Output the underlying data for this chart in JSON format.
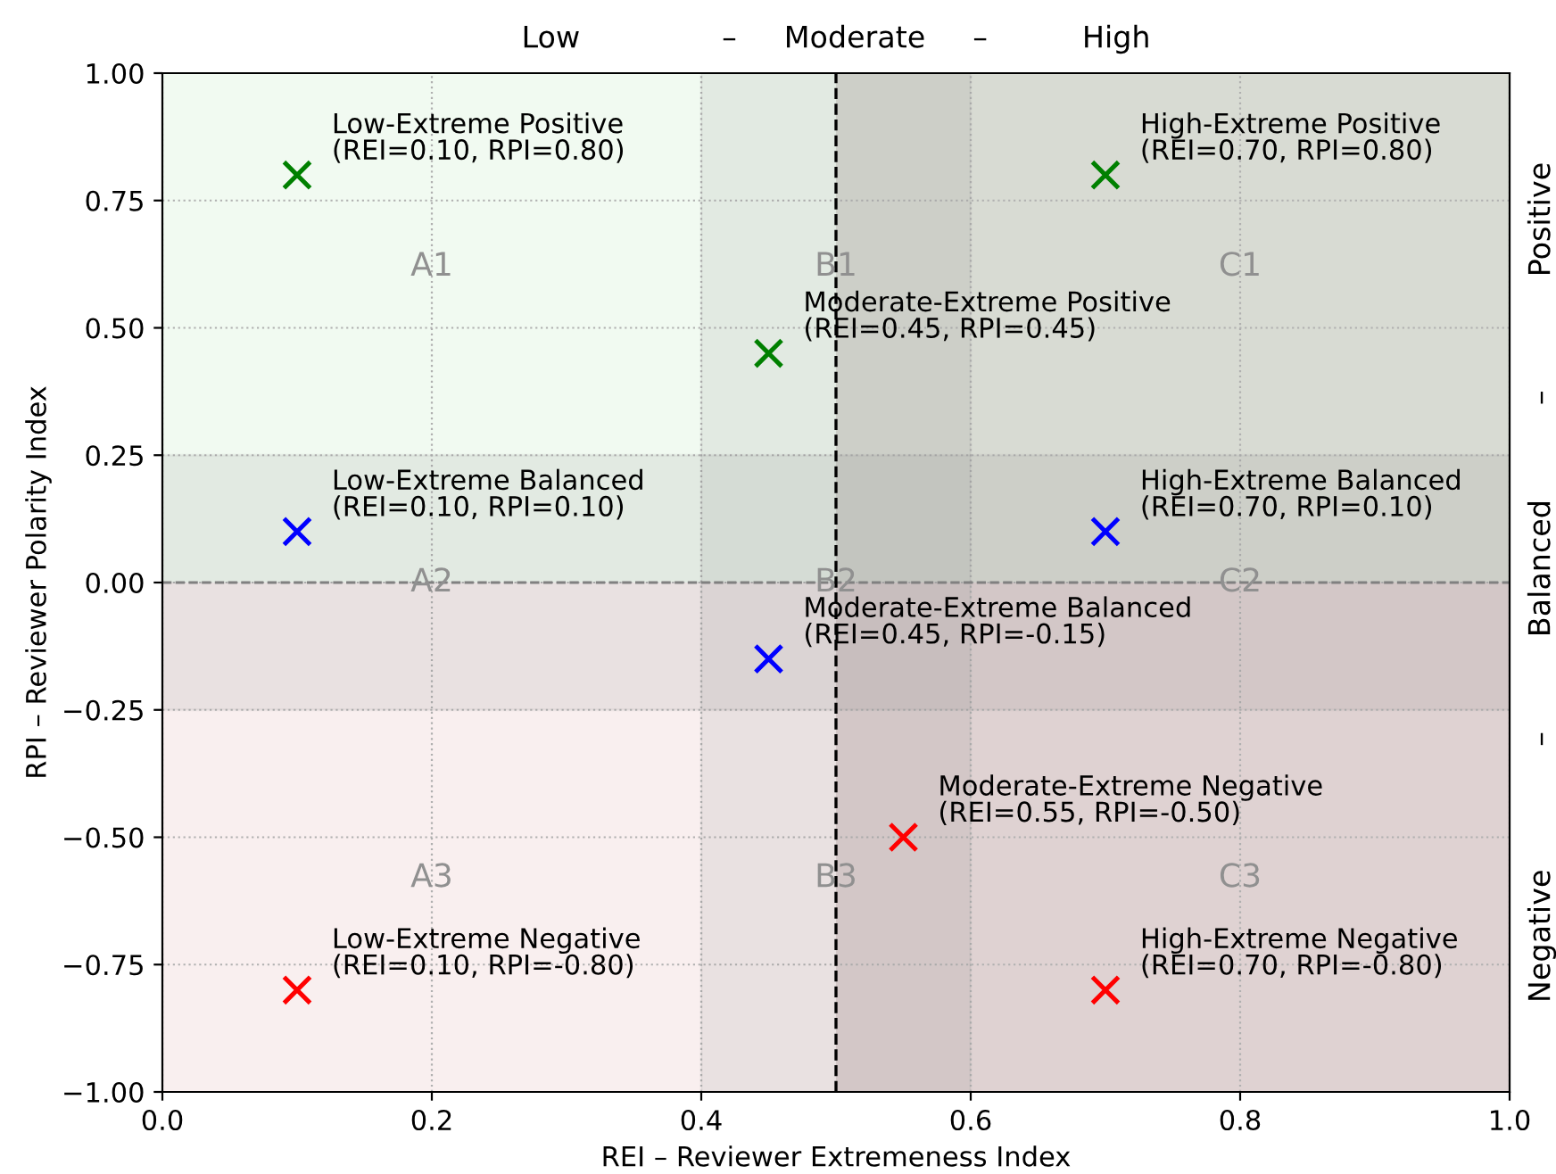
{
  "chart_data": {
    "type": "scatter",
    "xlabel": "REI – Reviewer Extremeness Index",
    "ylabel": "RPI – Reviewer Polarity Index",
    "series": [
      {
        "color": "#008000",
        "x": [
          0.1,
          0.45,
          0.7
        ],
        "values": [
          0.8,
          0.45,
          0.8
        ]
      },
      {
        "color": "#0000ff",
        "x": [
          0.1,
          0.45,
          0.7
        ],
        "values": [
          0.1,
          -0.15,
          0.1
        ]
      },
      {
        "color": "#ff0000",
        "x": [
          0.1,
          0.55,
          0.7
        ],
        "values": [
          -0.8,
          -0.5,
          -0.8
        ]
      }
    ],
    "marker": "cross",
    "xlim": [
      0.0,
      1.0
    ],
    "ylim": [
      -1.0,
      1.0
    ],
    "xticks": [
      {
        "value": 0,
        "label": "0.0"
      },
      0.2,
      0.4,
      0.6,
      0.8,
      {
        "value": 1,
        "label": "1.0"
      }
    ],
    "yticks": [
      {
        "value": -1,
        "label": "−1.00"
      },
      {
        "value": -0.75,
        "label": "−0.75"
      },
      {
        "value": -0.5,
        "label": "−0.50"
      },
      {
        "value": -0.25,
        "label": "−0.25"
      },
      {
        "value": 0,
        "label": "0.00"
      },
      {
        "value": 0.25,
        "label": "0.25"
      },
      {
        "value": 0.5,
        "label": "0.50"
      },
      {
        "value": 0.75,
        "label": "0.75"
      },
      {
        "value": 1,
        "label": "1.00"
      }
    ],
    "grid": true,
    "bands": [
      {
        "axis": "y",
        "from": 0.0,
        "to": 1.0,
        "color": "#f1faf1"
      },
      {
        "axis": "y",
        "from": -1.0,
        "to": 0.0,
        "color": "#f9efef"
      },
      {
        "axis": "y",
        "from": -0.25,
        "to": 0.25,
        "color": "#808080"
      },
      {
        "axis": "x",
        "from": 0.4,
        "to": 0.6,
        "color": "#808080"
      },
      {
        "axis": "x",
        "from": 0.5,
        "to": 1.0,
        "color": "#6a5050"
      }
    ],
    "ref_lines": [
      {
        "axis": "x",
        "value": 0.5,
        "color": "#000000",
        "line_style": "dashed"
      },
      {
        "axis": "y",
        "value": 0.0,
        "color": "#808080",
        "line_style": "dashed"
      }
    ],
    "annotations": [
      "Low               –     Moderate     –          High",
      "Negative             –          Balanced          –            Positive",
      "A1",
      "B1",
      "C1",
      "A2",
      "B2",
      "C2",
      "A3",
      "B3",
      "C3",
      {
        "text": "Low-Extreme Positive\n(REI=0.10, RPI=0.80)",
        "x": 0.1,
        "y": 0.8
      },
      {
        "text": "Moderate-Extreme Positive\n(REI=0.45, RPI=0.45)",
        "x": 0.45,
        "y": 0.45
      },
      {
        "text": "High-Extreme Positive\n(REI=0.70, RPI=0.80)",
        "x": 0.7,
        "y": 0.8
      },
      {
        "text": "Low-Extreme Balanced\n(REI=0.10, RPI=0.10)",
        "x": 0.1,
        "y": 0.1
      },
      {
        "text": "Moderate-Extreme Balanced\n(REI=0.45, RPI=-0.15)",
        "x": 0.45,
        "y": -0.15
      },
      {
        "text": "High-Extreme Balanced\n(REI=0.70, RPI=0.10)",
        "x": 0.7,
        "y": 0.1
      },
      {
        "text": "Low-Extreme Negative\n(REI=0.10, RPI=-0.80)",
        "x": 0.1,
        "y": -0.8
      },
      {
        "text": "Moderate-Extreme Negative\n(REI=0.55, RPI=-0.50)",
        "x": 0.55,
        "y": -0.5
      },
      {
        "text": "High-Extreme Negative\n(REI=0.70, RPI=-0.80)",
        "x": 0.7,
        "y": -0.8
      }
    ]
  }
}
